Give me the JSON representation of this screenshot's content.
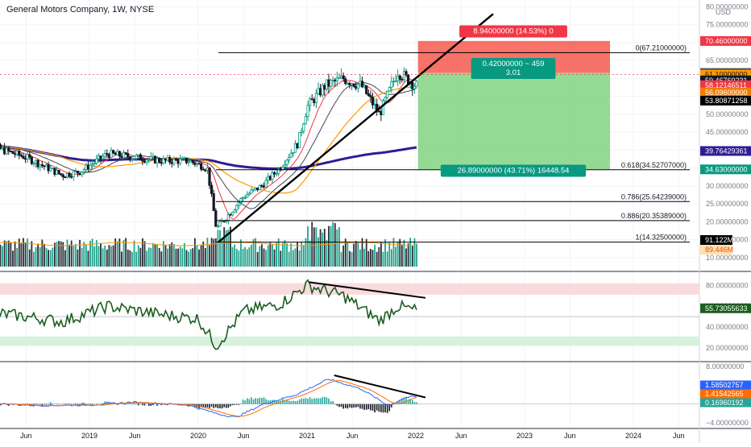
{
  "header": {
    "title": "General Motors Company, 1W, NYSE",
    "currency": "USD"
  },
  "chart_data": [
    {
      "type": "candlestick",
      "panel": "price",
      "y_axis_ticks": [
        "80.00000000",
        "75.00000000",
        "70.00000000",
        "65.00000000",
        "60.00000000",
        "55.00000000",
        "50.00000000",
        "45.00000000",
        "40.00000000",
        "35.00000000",
        "30.00000000",
        "25.00000000",
        "20.00000000",
        "15.00000000",
        "10.00000000"
      ],
      "y_axis_tick_values": [
        80,
        75,
        70,
        65,
        60,
        55,
        50,
        45,
        40,
        35,
        30,
        25,
        20,
        15,
        10
      ],
      "ylim": [
        7.5,
        81
      ],
      "price_tags": [
        {
          "label": "70.46000000",
          "value": 70.46,
          "bg": "#f23645",
          "fg": "#ffffff"
        },
        {
          "label": "61.52000000",
          "value": 61.52,
          "bg": "#434651",
          "fg": "#ffffff"
        },
        {
          "label": "61.10000000",
          "value": 61.1,
          "bg": "#ff9800",
          "fg": "#131722"
        },
        {
          "label": "59.46769231",
          "value": 59.47,
          "bg": "#131722",
          "fg": "#ffffff"
        },
        {
          "label": "58.12146511",
          "value": 58.12,
          "bg": "#f23645",
          "fg": "#ffffff"
        },
        {
          "label": "56.09600000",
          "value": 56.1,
          "bg": "#f57c00",
          "fg": "#ffffff"
        },
        {
          "label": "53.80871258",
          "value": 53.81,
          "bg": "#000000",
          "fg": "#ffffff"
        },
        {
          "label": "39.76429361",
          "value": 39.76,
          "bg": "#311b92",
          "fg": "#ffffff"
        },
        {
          "label": "34.63000000",
          "value": 34.63,
          "bg": "#089981",
          "fg": "#ffffff"
        }
      ],
      "fib_levels": [
        {
          "label": "0(67.21000000)",
          "value": 67.21
        },
        {
          "label": "0.618(34.52707000)",
          "value": 34.527
        },
        {
          "label": "0.786(25.64239000)",
          "value": 25.642
        },
        {
          "label": "0.886(20.35389000)",
          "value": 20.354
        },
        {
          "label": "1(14.32500000)",
          "value": 14.325
        }
      ],
      "position": {
        "entry": 61.52,
        "stop": 70.46,
        "target": 34.63,
        "risk_label": "8.94000000 (14.53%) 0",
        "ratio_label": "0.42000000 ~ 459",
        "ratio_value": "3.01",
        "reward_label": "26.89000000 (43.71%) 16448.54"
      },
      "key_prices": [
        {
          "date": "2018-01",
          "value": 42
        },
        {
          "date": "2018-06",
          "value": 38
        },
        {
          "date": "2018-10",
          "value": 33
        },
        {
          "date": "2018-12",
          "value": 34
        },
        {
          "date": "2019-03",
          "value": 39
        },
        {
          "date": "2019-06",
          "value": 38
        },
        {
          "date": "2019-09",
          "value": 37
        },
        {
          "date": "2019-12",
          "value": 37
        },
        {
          "date": "2020-02",
          "value": 35
        },
        {
          "date": "2020-03",
          "value": 18
        },
        {
          "date": "2020-04",
          "value": 21
        },
        {
          "date": "2020-06",
          "value": 27
        },
        {
          "date": "2020-08",
          "value": 30
        },
        {
          "date": "2020-10",
          "value": 35
        },
        {
          "date": "2020-12",
          "value": 42
        },
        {
          "date": "2021-01",
          "value": 52
        },
        {
          "date": "2021-03",
          "value": 58
        },
        {
          "date": "2021-05",
          "value": 60
        },
        {
          "date": "2021-07",
          "value": 58
        },
        {
          "date": "2021-09",
          "value": 50
        },
        {
          "date": "2021-11",
          "value": 62
        },
        {
          "date": "2022-01",
          "value": 58
        }
      ],
      "volume_tags": [
        {
          "label": "91.122M",
          "bg": "#000000",
          "fg": "#ffffff"
        },
        {
          "label": "89.446M",
          "bg": "#ffe0b2",
          "fg": "#e65100"
        }
      ]
    },
    {
      "type": "line",
      "panel": "rsi",
      "y_axis_ticks": [
        "80.00000000",
        "60.00000000",
        "40.00000000",
        "20.00000000"
      ],
      "y_axis_tick_values": [
        80,
        60,
        40,
        20
      ],
      "ylim": [
        10,
        91
      ],
      "last_value_tag": {
        "label": "55.73055633",
        "bg": "#1b5e20",
        "fg": "#ffffff"
      },
      "key_values": [
        {
          "date": "2018-01",
          "value": 55
        },
        {
          "date": "2018-06",
          "value": 50
        },
        {
          "date": "2018-10",
          "value": 45
        },
        {
          "date": "2019-03",
          "value": 60
        },
        {
          "date": "2019-09",
          "value": 52
        },
        {
          "date": "2020-01",
          "value": 48
        },
        {
          "date": "2020-03",
          "value": 22
        },
        {
          "date": "2020-06",
          "value": 55
        },
        {
          "date": "2020-10",
          "value": 62
        },
        {
          "date": "2021-01",
          "value": 80
        },
        {
          "date": "2021-05",
          "value": 70
        },
        {
          "date": "2021-09",
          "value": 46
        },
        {
          "date": "2021-11",
          "value": 60
        },
        {
          "date": "2022-01",
          "value": 56
        }
      ]
    },
    {
      "type": "histogram+line",
      "panel": "macd",
      "y_axis_ticks": [
        "8.00000000",
        "4.00000000",
        "0.00000000",
        "−4.00000000"
      ],
      "y_axis_tick_values": [
        8,
        4,
        0,
        -4
      ],
      "ylim": [
        -4.5,
        8.5
      ],
      "value_tags": [
        {
          "label": "1.58502757",
          "bg": "#2962ff",
          "fg": "#ffffff"
        },
        {
          "label": "1.41542565",
          "bg": "#ff6d00",
          "fg": "#ffffff"
        },
        {
          "label": "0.16960192",
          "bg": "#26a69a",
          "fg": "#ffffff"
        }
      ]
    }
  ],
  "time_axis": [
    {
      "label": "Jun",
      "date": "2018-06"
    },
    {
      "label": "2019",
      "date": "2019-01"
    },
    {
      "label": "Jun",
      "date": "2019-06"
    },
    {
      "label": "2020",
      "date": "2020-01"
    },
    {
      "label": "Jun",
      "date": "2020-06"
    },
    {
      "label": "2021",
      "date": "2021-01"
    },
    {
      "label": "Jun",
      "date": "2021-06"
    },
    {
      "label": "2022",
      "date": "2022-01"
    },
    {
      "label": "Jun",
      "date": "2022-06"
    },
    {
      "label": "2023",
      "date": "2023-01"
    },
    {
      "label": "Jun",
      "date": "2023-06"
    },
    {
      "label": "2024",
      "date": "2024-01"
    },
    {
      "label": "Jun",
      "date": "2024-06"
    }
  ],
  "colors": {
    "up": "#089981",
    "down": "#131722",
    "grid": "#f0f3fa",
    "ma_fast": "#f23645",
    "ma_mid": "#434651",
    "ma_slow": "#ff9800",
    "ma_long": "#311b92",
    "rsi": "#1b5e20",
    "rsi_top_band": "#f8d7da",
    "rsi_bottom_band": "#d4f0d9",
    "loss_zone": "#f44336",
    "profit_zone": "#81d481"
  }
}
